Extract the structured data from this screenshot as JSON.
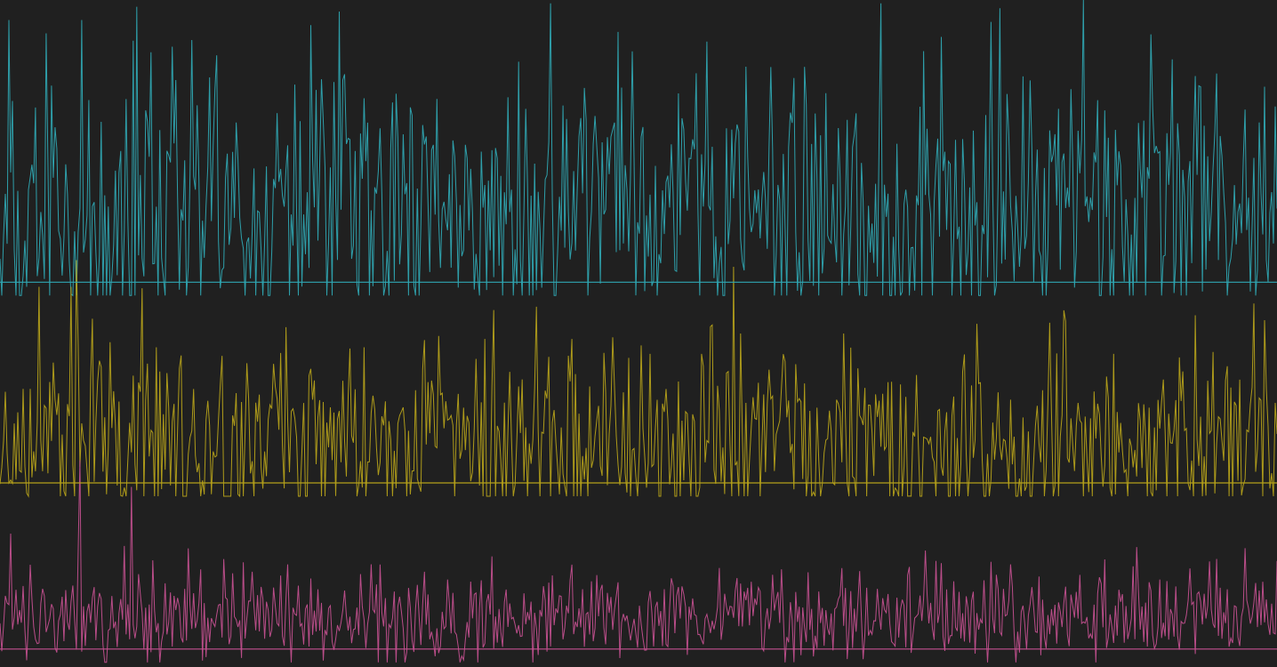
{
  "chart_data": {
    "type": "line",
    "title": "",
    "xlabel": "",
    "ylabel": "",
    "grid": false,
    "legend": "none",
    "x_range": [
      0,
      1
    ],
    "y_range": [
      0,
      1
    ],
    "samples": 720,
    "series": [
      {
        "color": "#2fa6b2",
        "baseline": 0.577,
        "mean_level": 0.68,
        "spread": 0.14,
        "seed": 11,
        "peaks": [
          [
            0.007,
            0.97
          ],
          [
            0.036,
            0.95
          ],
          [
            0.064,
            0.97
          ],
          [
            0.135,
            0.93
          ],
          [
            0.15,
            0.94
          ],
          [
            0.584,
            0.9
          ],
          [
            0.848,
            1.0
          ],
          [
            0.94,
            0.87
          ],
          [
            0.99,
            0.87
          ]
        ]
      },
      {
        "color": "#b5a11a",
        "baseline": 0.276,
        "mean_level": 0.33,
        "spread": 0.1,
        "seed": 23,
        "peaks": [
          [
            0.03,
            0.57
          ],
          [
            0.055,
            0.57
          ],
          [
            0.06,
            0.61
          ],
          [
            0.575,
            0.6
          ],
          [
            0.66,
            0.5
          ],
          [
            0.99,
            0.52
          ]
        ]
      },
      {
        "color": "#c3508f",
        "baseline": 0.027,
        "mean_level": 0.07,
        "spread": 0.05,
        "seed": 37,
        "peaks": [
          [
            0.008,
            0.2
          ],
          [
            0.062,
            0.31
          ],
          [
            0.103,
            0.27
          ],
          [
            0.12,
            0.16
          ],
          [
            0.377,
            0.13
          ],
          [
            0.712,
            0.15
          ],
          [
            0.77,
            0.13
          ]
        ]
      }
    ]
  }
}
